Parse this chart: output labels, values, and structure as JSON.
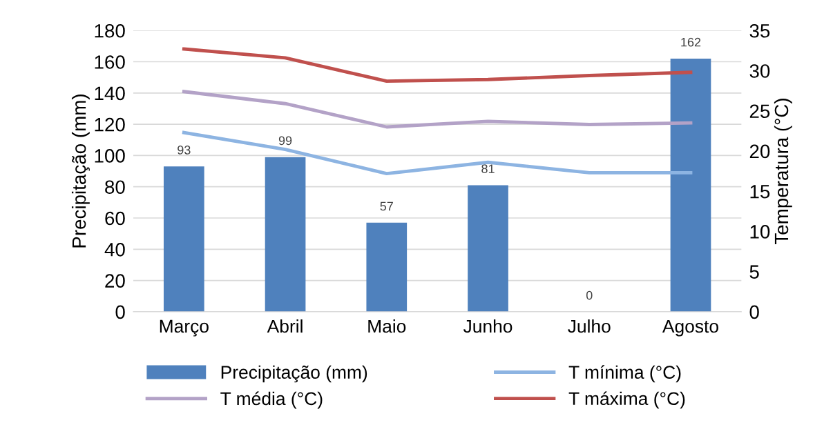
{
  "chart_data": {
    "type": "bar",
    "categories": [
      "Março",
      "Abril",
      "Maio",
      "Junho",
      "Julho",
      "Agosto"
    ],
    "ylabel": "Precipitação (mm)",
    "y2label": "Temperatura (°C)",
    "series": [
      {
        "name": "Precipitação (mm)",
        "color": "#4f81bd",
        "values": [
          93,
          99,
          57,
          81,
          0,
          162
        ],
        "value_labels": [
          "93",
          "99",
          "57",
          "81",
          "0",
          "162"
        ]
      },
      {
        "name": "T mínima (°C)",
        "type": "line",
        "axis": "y2",
        "color": "#8db4e2",
        "values": [
          22.3,
          20.2,
          17.2,
          18.6,
          17.3,
          17.3
        ]
      },
      {
        "name": "T média (°C)",
        "type": "line",
        "axis": "y2",
        "color": "#b3a2c7",
        "values": [
          27.4,
          25.9,
          23.0,
          23.7,
          23.3,
          23.5
        ]
      },
      {
        "name": "T máxima (°C)",
        "type": "line",
        "axis": "y2",
        "color": "#c0504d",
        "values": [
          32.7,
          31.6,
          28.7,
          28.9,
          29.4,
          29.8
        ]
      }
    ],
    "ylim": [
      0,
      180
    ],
    "yticks": [
      0,
      20,
      40,
      60,
      80,
      100,
      120,
      140,
      160,
      180
    ],
    "y2lim": [
      0,
      35
    ],
    "y2ticks": [
      0,
      5,
      10,
      15,
      20,
      25,
      30,
      35
    ],
    "grid": "y",
    "legend": "bottom",
    "marker": "none",
    "line_style": "solid"
  }
}
